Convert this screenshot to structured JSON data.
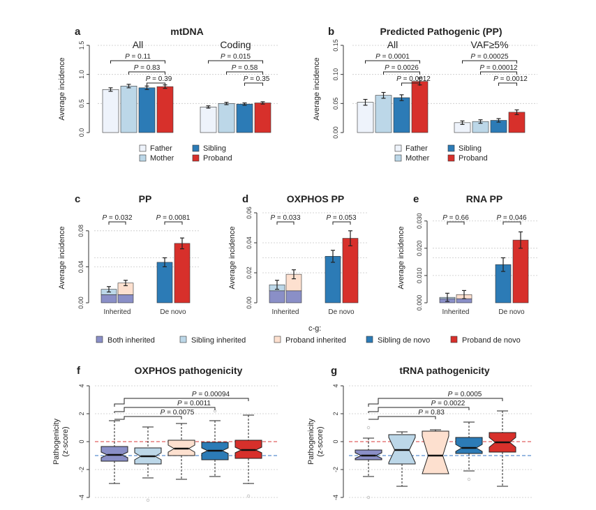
{
  "colors": {
    "father": "#eef3fb",
    "mother": "#bcd7e8",
    "sibling": "#2c7bb6",
    "proband": "#d7302b",
    "both_inherited": "#8a8fc7",
    "sibling_inherited": "#bcd7e8",
    "proband_inherited": "#fde0cf",
    "sibling_denovo": "#2c7bb6",
    "proband_denovo": "#d7302b"
  },
  "legend_ab": {
    "labels": [
      "Father",
      "Mother",
      "Sibling",
      "Proband"
    ]
  },
  "legend_cg": {
    "prefix": "c-g:",
    "labels": [
      "Both inherited",
      "Sibling inherited",
      "Proband inherited",
      "Sibling de novo",
      "Proband de novo"
    ]
  },
  "chart_data": [
    {
      "id": "a",
      "type": "bar",
      "letter": "a",
      "title": "mtDNA",
      "ylabel": "Average incidence",
      "ylim": [
        0,
        1.5
      ],
      "yticks": [
        "0.0",
        "0.5",
        "1.0",
        "1.5"
      ],
      "ytick_values": [
        0,
        0.5,
        1.0,
        1.5
      ],
      "groups": [
        {
          "label": "All",
          "values": [
            0.74,
            0.8,
            0.77,
            0.79
          ],
          "errors": [
            0.03,
            0.03,
            0.03,
            0.03
          ],
          "pvalues": [
            "P = 0.11",
            "P = 0.83",
            "P = 0.39"
          ]
        },
        {
          "label": "Coding",
          "values": [
            0.44,
            0.5,
            0.49,
            0.51
          ],
          "errors": [
            0.02,
            0.02,
            0.02,
            0.02
          ],
          "pvalues": [
            "P = 0.015",
            "P = 0.58",
            "P = 0.35"
          ]
        }
      ],
      "series": [
        "Father",
        "Mother",
        "Sibling",
        "Proband"
      ]
    },
    {
      "id": "b",
      "type": "bar",
      "letter": "b",
      "title": "Predicted Pathogenic (PP)",
      "ylabel": "Average incidence",
      "ylim": [
        0,
        0.15
      ],
      "yticks": [
        "0.00",
        "0.05",
        "0.10",
        "0.15"
      ],
      "ytick_values": [
        0,
        0.05,
        0.1,
        0.15
      ],
      "groups": [
        {
          "label": "All",
          "values": [
            0.052,
            0.064,
            0.06,
            0.088
          ],
          "errors": [
            0.005,
            0.005,
            0.005,
            0.006
          ],
          "pvalues": [
            "P = 0.0001",
            "P = 0.0026",
            "P = 0.0012"
          ]
        },
        {
          "label": "VAF≥5%",
          "values": [
            0.017,
            0.019,
            0.021,
            0.035
          ],
          "errors": [
            0.003,
            0.003,
            0.003,
            0.004
          ],
          "pvalues": [
            "P = 0.00025",
            "P = 0.00012",
            "P = 0.0012"
          ]
        }
      ],
      "series": [
        "Father",
        "Mother",
        "Sibling",
        "Proband"
      ]
    },
    {
      "id": "c",
      "type": "bar",
      "letter": "c",
      "title": "PP",
      "ylabel": "Average incidence",
      "ylim": [
        0,
        0.1
      ],
      "yticks": [
        "0.00",
        "0.04",
        "0.08"
      ],
      "ytick_values": [
        0,
        0.04,
        0.08
      ],
      "categories": [
        "Inherited",
        "De novo"
      ],
      "inherited": {
        "both": 0.009,
        "sibling_total": 0.015,
        "proband_total": 0.022,
        "err_s": 0.003,
        "err_p": 0.003
      },
      "denovo": {
        "sibling": 0.045,
        "proband": 0.066,
        "err_s": 0.005,
        "err_p": 0.006
      },
      "pvalues": [
        "P = 0.032",
        "P = 0.0081"
      ]
    },
    {
      "id": "d",
      "type": "bar",
      "letter": "d",
      "title": "OXPHOS PP",
      "ylabel": "Average incidence",
      "ylim": [
        0,
        0.06
      ],
      "yticks": [
        "0.00",
        "0.02",
        "0.04",
        "0.06"
      ],
      "ytick_values": [
        0,
        0.02,
        0.04,
        0.06
      ],
      "categories": [
        "Inherited",
        "De novo"
      ],
      "inherited": {
        "both": 0.008,
        "sibling_total": 0.012,
        "proband_total": 0.019,
        "err_s": 0.003,
        "err_p": 0.003
      },
      "denovo": {
        "sibling": 0.031,
        "proband": 0.043,
        "err_s": 0.004,
        "err_p": 0.005
      },
      "pvalues": [
        "P = 0.033",
        "P = 0.053"
      ]
    },
    {
      "id": "e",
      "type": "bar",
      "letter": "e",
      "title": "RNA PP",
      "ylabel": "Average incidence",
      "ylim": [
        0,
        0.033
      ],
      "yticks": [
        "0.000",
        "0.010",
        "0.020",
        "0.030"
      ],
      "ytick_values": [
        0,
        0.01,
        0.02,
        0.03
      ],
      "categories": [
        "Inherited",
        "De novo"
      ],
      "inherited": {
        "both": 0.0015,
        "sibling_total": 0.002,
        "proband_total": 0.003,
        "err_s": 0.0015,
        "err_p": 0.0015
      },
      "denovo": {
        "sibling": 0.014,
        "proband": 0.023,
        "err_s": 0.0025,
        "err_p": 0.003
      },
      "pvalues": [
        "P = 0.66",
        "P = 0.046"
      ]
    },
    {
      "id": "f",
      "type": "box",
      "letter": "f",
      "title": "OXPHOS pathogenicity",
      "ylabel": [
        "Pathogenicity",
        "(z-score)"
      ],
      "ylim": [
        -4,
        4
      ],
      "yticks": [
        "-4",
        "-2",
        "0",
        "2",
        "4"
      ],
      "ytick_values": [
        -4,
        -2,
        0,
        2,
        4
      ],
      "ref_lines": {
        "red": 0,
        "blue": -1
      },
      "boxes": [
        {
          "q1": -1.4,
          "median": -0.95,
          "q3": -0.35,
          "wlo": -3.0,
          "whi": 1.5,
          "notch": 0.2,
          "outliers": []
        },
        {
          "q1": -1.6,
          "median": -1.05,
          "q3": -0.45,
          "wlo": -2.6,
          "whi": 1.05,
          "notch": 0.25,
          "outliers": [
            -4.2
          ]
        },
        {
          "q1": -1.0,
          "median": -0.5,
          "q3": 0.1,
          "wlo": -2.7,
          "whi": 1.3,
          "notch": 0.25,
          "outliers": []
        },
        {
          "q1": -1.3,
          "median": -0.65,
          "q3": -0.05,
          "wlo": -2.5,
          "whi": 1.5,
          "notch": 0.2,
          "outliers": [
            2.2
          ]
        },
        {
          "q1": -1.2,
          "median": -0.6,
          "q3": 0.1,
          "wlo": -3.0,
          "whi": 1.9,
          "notch": 0.2,
          "outliers": [
            -3.9
          ]
        }
      ],
      "pvalues": [
        "P = 0.00094",
        "P = 0.0011",
        "P = 0.0075"
      ],
      "bracket_targets": [
        4,
        3,
        2
      ]
    },
    {
      "id": "g",
      "type": "box",
      "letter": "g",
      "title": "tRNA pathogenicity",
      "ylabel": [
        "Pathogenicity",
        "(z-score)"
      ],
      "ylim": [
        -4,
        4
      ],
      "yticks": [
        "-4",
        "-2",
        "0",
        "2",
        "4"
      ],
      "ytick_values": [
        -4,
        -2,
        0,
        2,
        4
      ],
      "ref_lines": {
        "red": 0,
        "blue": -1
      },
      "boxes": [
        {
          "q1": -1.3,
          "median": -1.0,
          "q3": -0.6,
          "wlo": -2.5,
          "whi": 0.25,
          "notch": 0.2,
          "outliers": [
            -4.0,
            1.0
          ]
        },
        {
          "q1": -1.6,
          "median": -0.6,
          "q3": 0.5,
          "wlo": -3.2,
          "whi": 0.7,
          "notch": 0.9,
          "outliers": []
        },
        {
          "q1": -2.3,
          "median": -1.0,
          "q3": 0.75,
          "wlo": -2.3,
          "whi": 0.85,
          "notch": 1.4,
          "outliers": []
        },
        {
          "q1": -0.85,
          "median": -0.45,
          "q3": 0.3,
          "wlo": -2.1,
          "whi": 1.4,
          "notch": 0.25,
          "outliers": [
            -2.7
          ]
        },
        {
          "q1": -0.75,
          "median": -0.05,
          "q3": 0.65,
          "wlo": -3.2,
          "whi": 2.2,
          "notch": 0.35,
          "outliers": []
        }
      ],
      "pvalues": [
        "P = 0.0005",
        "P = 0.0022",
        "P = 0.83"
      ],
      "bracket_targets": [
        4,
        3,
        2
      ]
    }
  ]
}
